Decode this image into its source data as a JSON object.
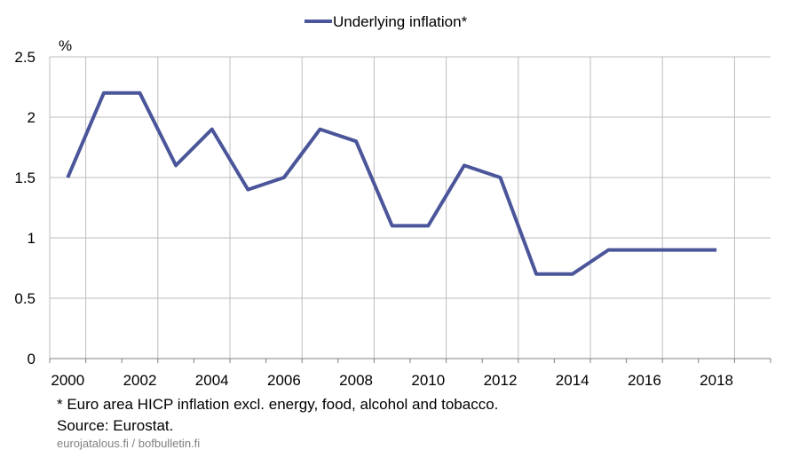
{
  "chart_data": {
    "type": "line",
    "title": "",
    "xlabel": "",
    "ylabel": "%",
    "ylim": [
      0,
      2.5
    ],
    "y_ticks": [
      "0",
      "0.5",
      "1",
      "1.5",
      "2",
      "2.5"
    ],
    "x_range": [
      2000,
      2019
    ],
    "x_ticks": [
      "2000",
      "2002",
      "2004",
      "2006",
      "2008",
      "2010",
      "2012",
      "2014",
      "2016",
      "2018"
    ],
    "grid": true,
    "legend_position": "top-center",
    "series": [
      {
        "name": "Underlying inflation*",
        "color": "#4a559a",
        "x": [
          2000,
          2001,
          2002,
          2003,
          2004,
          2005,
          2006,
          2007,
          2008,
          2009,
          2010,
          2011,
          2012,
          2013,
          2014,
          2015,
          2016,
          2017,
          2018
        ],
        "values": [
          1.5,
          2.2,
          2.2,
          1.6,
          1.9,
          1.4,
          1.5,
          1.9,
          1.8,
          1.1,
          1.1,
          1.6,
          1.5,
          0.7,
          0.7,
          0.9,
          0.9,
          0.9,
          0.9
        ]
      }
    ]
  },
  "footnote": "* Euro area HICP inflation excl. energy, food, alcohol and tobacco.",
  "source": "Source: Eurostat.",
  "credit": "eurojаtalous.fi / bofbulletin.fi"
}
